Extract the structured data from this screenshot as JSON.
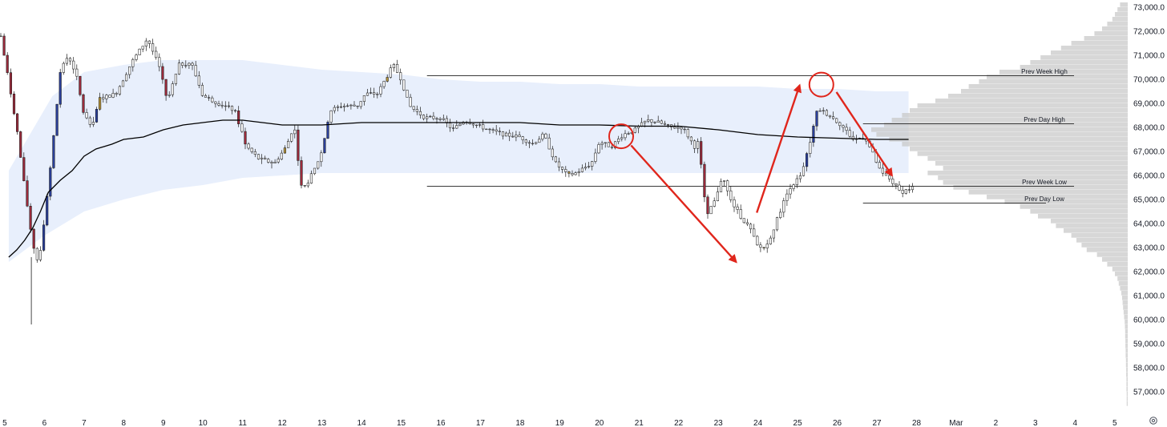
{
  "chart_data": {
    "type": "candlestick",
    "title": "",
    "price_axis": {
      "ticks": [
        "73,000.0",
        "72,000.0",
        "71,000.0",
        "70,000.0",
        "69,000.0",
        "68,000.0",
        "67,000.0",
        "66,000.0",
        "65,000.0",
        "64,000.0",
        "63,000.0",
        "62,000.0",
        "61,000.0",
        "60,000.0",
        "59,000.0",
        "58,000.0",
        "57,000.0"
      ],
      "tick_values": [
        73000,
        72000,
        71000,
        70000,
        69000,
        68000,
        67000,
        66000,
        65000,
        64000,
        63000,
        62000,
        61000,
        60000,
        59000,
        58000,
        57000
      ],
      "range": [
        56300,
        73300
      ]
    },
    "time_axis": {
      "ticks": [
        "5",
        "6",
        "7",
        "8",
        "9",
        "10",
        "11",
        "12",
        "13",
        "14",
        "15",
        "16",
        "17",
        "18",
        "19",
        "20",
        "21",
        "22",
        "23",
        "24",
        "25",
        "26",
        "27",
        "28",
        "Mar",
        "2",
        "3",
        "4",
        "5"
      ],
      "tick_values": [
        5,
        6,
        7,
        8,
        9,
        10,
        11,
        12,
        13,
        14,
        15,
        16,
        17,
        18,
        19,
        20,
        21,
        22,
        23,
        24,
        25,
        26,
        27,
        28,
        29,
        30,
        31,
        32,
        33
      ],
      "range": [
        4.88,
        33.47
      ]
    },
    "key_path": [
      [
        4.9,
        71800
      ],
      [
        5.3,
        68000
      ],
      [
        5.5,
        65500
      ],
      [
        5.7,
        63200
      ],
      [
        5.85,
        62300
      ],
      [
        6.1,
        65500
      ],
      [
        6.4,
        70300
      ],
      [
        6.6,
        71000
      ],
      [
        6.8,
        70200
      ],
      [
        7.0,
        68500
      ],
      [
        7.2,
        68100
      ],
      [
        7.4,
        69200
      ],
      [
        7.8,
        69400
      ],
      [
        8.2,
        70700
      ],
      [
        8.6,
        71700
      ],
      [
        8.9,
        70500
      ],
      [
        9.1,
        69100
      ],
      [
        9.4,
        70600
      ],
      [
        9.7,
        70700
      ],
      [
        10.0,
        69300
      ],
      [
        10.4,
        69000
      ],
      [
        10.8,
        68700
      ],
      [
        11.1,
        67200
      ],
      [
        11.4,
        66700
      ],
      [
        11.8,
        66500
      ],
      [
        12.1,
        67200
      ],
      [
        12.3,
        68100
      ],
      [
        12.5,
        65300
      ],
      [
        12.8,
        66200
      ],
      [
        13.0,
        67000
      ],
      [
        13.2,
        68700
      ],
      [
        13.5,
        68900
      ],
      [
        13.9,
        68900
      ],
      [
        14.1,
        69400
      ],
      [
        14.4,
        69400
      ],
      [
        14.8,
        70600
      ],
      [
        15.0,
        70000
      ],
      [
        15.2,
        68900
      ],
      [
        15.6,
        68400
      ],
      [
        16.0,
        68400
      ],
      [
        16.3,
        67900
      ],
      [
        16.6,
        68300
      ],
      [
        16.9,
        68100
      ],
      [
        17.2,
        67900
      ],
      [
        17.6,
        67700
      ],
      [
        18.0,
        67600
      ],
      [
        18.3,
        67300
      ],
      [
        18.6,
        67700
      ],
      [
        18.9,
        66500
      ],
      [
        19.2,
        66000
      ],
      [
        19.4,
        66100
      ],
      [
        19.8,
        66500
      ],
      [
        20.0,
        67400
      ],
      [
        20.3,
        67200
      ],
      [
        20.6,
        67700
      ],
      [
        20.9,
        67900
      ],
      [
        21.2,
        68300
      ],
      [
        21.5,
        68200
      ],
      [
        21.8,
        68000
      ],
      [
        22.1,
        68000
      ],
      [
        22.4,
        67200
      ],
      [
        22.5,
        67400
      ],
      [
        22.7,
        64400
      ],
      [
        22.9,
        64900
      ],
      [
        23.1,
        66000
      ],
      [
        23.3,
        65000
      ],
      [
        23.6,
        64200
      ],
      [
        23.8,
        63800
      ],
      [
        24.0,
        63000
      ],
      [
        24.2,
        63000
      ],
      [
        24.4,
        63800
      ],
      [
        24.6,
        64700
      ],
      [
        24.8,
        65500
      ],
      [
        25.1,
        66000
      ],
      [
        25.3,
        67300
      ],
      [
        25.5,
        68800
      ],
      [
        25.8,
        68500
      ],
      [
        26.1,
        68100
      ],
      [
        26.4,
        67500
      ],
      [
        26.7,
        67600
      ],
      [
        26.9,
        66900
      ],
      [
        27.1,
        66100
      ],
      [
        27.3,
        65900
      ],
      [
        27.6,
        65300
      ],
      [
        27.9,
        65500
      ]
    ],
    "series": [
      {
        "type": "line",
        "values": [
          [
            5.1,
            62600
          ],
          [
            5.3,
            62900
          ],
          [
            5.5,
            63300
          ],
          [
            5.7,
            63800
          ],
          [
            5.9,
            64500
          ],
          [
            6.1,
            65300
          ],
          [
            6.4,
            65800
          ],
          [
            6.7,
            66200
          ],
          [
            7.0,
            66800
          ],
          [
            7.3,
            67100
          ],
          [
            7.7,
            67300
          ],
          [
            8.0,
            67500
          ],
          [
            8.5,
            67600
          ],
          [
            9.0,
            67900
          ],
          [
            9.5,
            68100
          ],
          [
            10.0,
            68200
          ],
          [
            10.5,
            68300
          ],
          [
            11.0,
            68300
          ],
          [
            11.5,
            68200
          ],
          [
            12.0,
            68100
          ],
          [
            12.5,
            68100
          ],
          [
            13.0,
            68100
          ],
          [
            14.0,
            68200
          ],
          [
            15.0,
            68200
          ],
          [
            16.0,
            68200
          ],
          [
            17.0,
            68200
          ],
          [
            18.0,
            68200
          ],
          [
            19.0,
            68100
          ],
          [
            20.0,
            68100
          ],
          [
            21.0,
            68050
          ],
          [
            22.0,
            68050
          ],
          [
            23.0,
            67900
          ],
          [
            24.0,
            67700
          ],
          [
            25.0,
            67600
          ],
          [
            26.0,
            67550
          ],
          [
            27.0,
            67500
          ],
          [
            27.8,
            67500
          ]
        ]
      }
    ],
    "value_area": {
      "start": 5.1,
      "end": 27.8,
      "high": [
        [
          5.1,
          66200
        ],
        [
          6.2,
          69300
        ],
        [
          7.0,
          70300
        ],
        [
          8.0,
          70600
        ],
        [
          9.0,
          70800
        ],
        [
          10.0,
          70800
        ],
        [
          11.0,
          70800
        ],
        [
          12.0,
          70600
        ],
        [
          13.0,
          70400
        ],
        [
          14.0,
          70300
        ],
        [
          15.0,
          70200
        ],
        [
          16.0,
          70000
        ],
        [
          17.0,
          69900
        ],
        [
          18.0,
          69900
        ],
        [
          19.0,
          69800
        ],
        [
          20.0,
          69800
        ],
        [
          21.0,
          69700
        ],
        [
          22.0,
          69700
        ],
        [
          23.0,
          69700
        ],
        [
          24.0,
          69700
        ],
        [
          25.0,
          69600
        ],
        [
          26.0,
          69600
        ],
        [
          27.0,
          69500
        ],
        [
          27.8,
          69500
        ]
      ],
      "low": [
        [
          5.1,
          62400
        ],
        [
          6.0,
          63500
        ],
        [
          7.0,
          64500
        ],
        [
          8.0,
          65000
        ],
        [
          9.0,
          65400
        ],
        [
          10.0,
          65600
        ],
        [
          11.0,
          65900
        ],
        [
          12.0,
          66000
        ],
        [
          13.0,
          66100
        ],
        [
          14.0,
          66100
        ],
        [
          15.0,
          66100
        ],
        [
          16.0,
          66100
        ],
        [
          17.0,
          66100
        ],
        [
          18.0,
          66100
        ],
        [
          19.0,
          66100
        ],
        [
          20.0,
          66100
        ],
        [
          21.0,
          66100
        ],
        [
          22.0,
          66100
        ],
        [
          23.0,
          66100
        ],
        [
          24.0,
          66100
        ],
        [
          25.0,
          66100
        ],
        [
          26.0,
          66100
        ],
        [
          27.0,
          66100
        ],
        [
          27.8,
          66100
        ]
      ]
    },
    "levels": [
      {
        "label": "Prev Week High",
        "value": 70150,
        "x_start": 15.65
      },
      {
        "label": "Prev Day High",
        "value": 68150,
        "x_start": 26.65
      },
      {
        "label": "Prev Week Low",
        "value": 65550,
        "x_start": 15.65
      },
      {
        "label": "Prev Day Low",
        "value": 64850,
        "x_start": 26.65
      }
    ],
    "volume_profile": [
      [
        73100,
        0.03
      ],
      [
        72900,
        0.04
      ],
      [
        72700,
        0.05
      ],
      [
        72500,
        0.06
      ],
      [
        72300,
        0.08
      ],
      [
        72100,
        0.1
      ],
      [
        71900,
        0.13
      ],
      [
        71700,
        0.17
      ],
      [
        71500,
        0.22
      ],
      [
        71300,
        0.26
      ],
      [
        71100,
        0.3
      ],
      [
        70900,
        0.34
      ],
      [
        70700,
        0.38
      ],
      [
        70500,
        0.42
      ],
      [
        70300,
        0.5
      ],
      [
        70100,
        0.55
      ],
      [
        69900,
        0.58
      ],
      [
        69700,
        0.62
      ],
      [
        69500,
        0.65
      ],
      [
        69300,
        0.7
      ],
      [
        69100,
        0.75
      ],
      [
        68900,
        0.82
      ],
      [
        68700,
        0.85
      ],
      [
        68500,
        0.88
      ],
      [
        68300,
        0.92
      ],
      [
        68100,
        0.95
      ],
      [
        67900,
        1.0
      ],
      [
        67700,
        0.98
      ],
      [
        67500,
        0.93
      ],
      [
        67300,
        0.88
      ],
      [
        67100,
        0.85
      ],
      [
        66900,
        0.82
      ],
      [
        66700,
        0.78
      ],
      [
        66500,
        0.75
      ],
      [
        66300,
        0.72
      ],
      [
        66100,
        0.78
      ],
      [
        65900,
        0.74
      ],
      [
        65700,
        0.72
      ],
      [
        65500,
        0.68
      ],
      [
        65300,
        0.62
      ],
      [
        65100,
        0.55
      ],
      [
        64900,
        0.48
      ],
      [
        64700,
        0.42
      ],
      [
        64500,
        0.38
      ],
      [
        64300,
        0.35
      ],
      [
        64100,
        0.3
      ],
      [
        63900,
        0.28
      ],
      [
        63700,
        0.25
      ],
      [
        63500,
        0.22
      ],
      [
        63300,
        0.2
      ],
      [
        63100,
        0.18
      ],
      [
        62900,
        0.16
      ],
      [
        62700,
        0.12
      ],
      [
        62500,
        0.1
      ],
      [
        62300,
        0.08
      ],
      [
        62100,
        0.06
      ],
      [
        61900,
        0.05
      ],
      [
        61700,
        0.04
      ],
      [
        61500,
        0.035
      ],
      [
        61300,
        0.03
      ],
      [
        61100,
        0.025
      ],
      [
        60900,
        0.022
      ],
      [
        60700,
        0.02
      ],
      [
        60500,
        0.018
      ],
      [
        60300,
        0.016
      ],
      [
        60100,
        0.014
      ],
      [
        59900,
        0.012
      ],
      [
        59700,
        0.011
      ],
      [
        59500,
        0.01
      ],
      [
        59300,
        0.01
      ],
      [
        59100,
        0.009
      ],
      [
        58900,
        0.009
      ],
      [
        58700,
        0.008
      ],
      [
        58500,
        0.008
      ],
      [
        58300,
        0.007
      ],
      [
        58100,
        0.007
      ],
      [
        57900,
        0.006
      ],
      [
        57700,
        0.006
      ],
      [
        57500,
        0.005
      ],
      [
        57300,
        0.005
      ],
      [
        57100,
        0.005
      ],
      [
        56900,
        0.004
      ],
      [
        56700,
        0.004
      ],
      [
        56500,
        0.004
      ]
    ],
    "annotations": {
      "circles": [
        {
          "x": 20.55,
          "y": 67630
        },
        {
          "x": 25.6,
          "y": 69780
        }
      ],
      "arrows": [
        {
          "from": [
            20.8,
            67250
          ],
          "to": [
            23.45,
            62400
          ]
        },
        {
          "from": [
            23.97,
            64450
          ],
          "to": [
            25.05,
            69750
          ]
        },
        {
          "from": [
            25.98,
            69470
          ],
          "to": [
            27.38,
            66000
          ]
        }
      ],
      "arrow_color": "#e0261c",
      "circle_color": "#e0261c"
    },
    "colors": {
      "candle_body": "#ffffff",
      "candle_outline": "#1c1c1c",
      "candle_bearish_accent": "#9b2a3b",
      "candle_bullish_accent": "#2a3f9b",
      "candle_neutral_accent": "#b8963c",
      "value_area": "#e8effc",
      "vwap": "#000000",
      "levels": "#3a3a3a",
      "volume_profile": "#c9c9c9"
    },
    "grid": false,
    "legend": "none"
  },
  "controls": {
    "settings_icon": "gear-icon"
  }
}
